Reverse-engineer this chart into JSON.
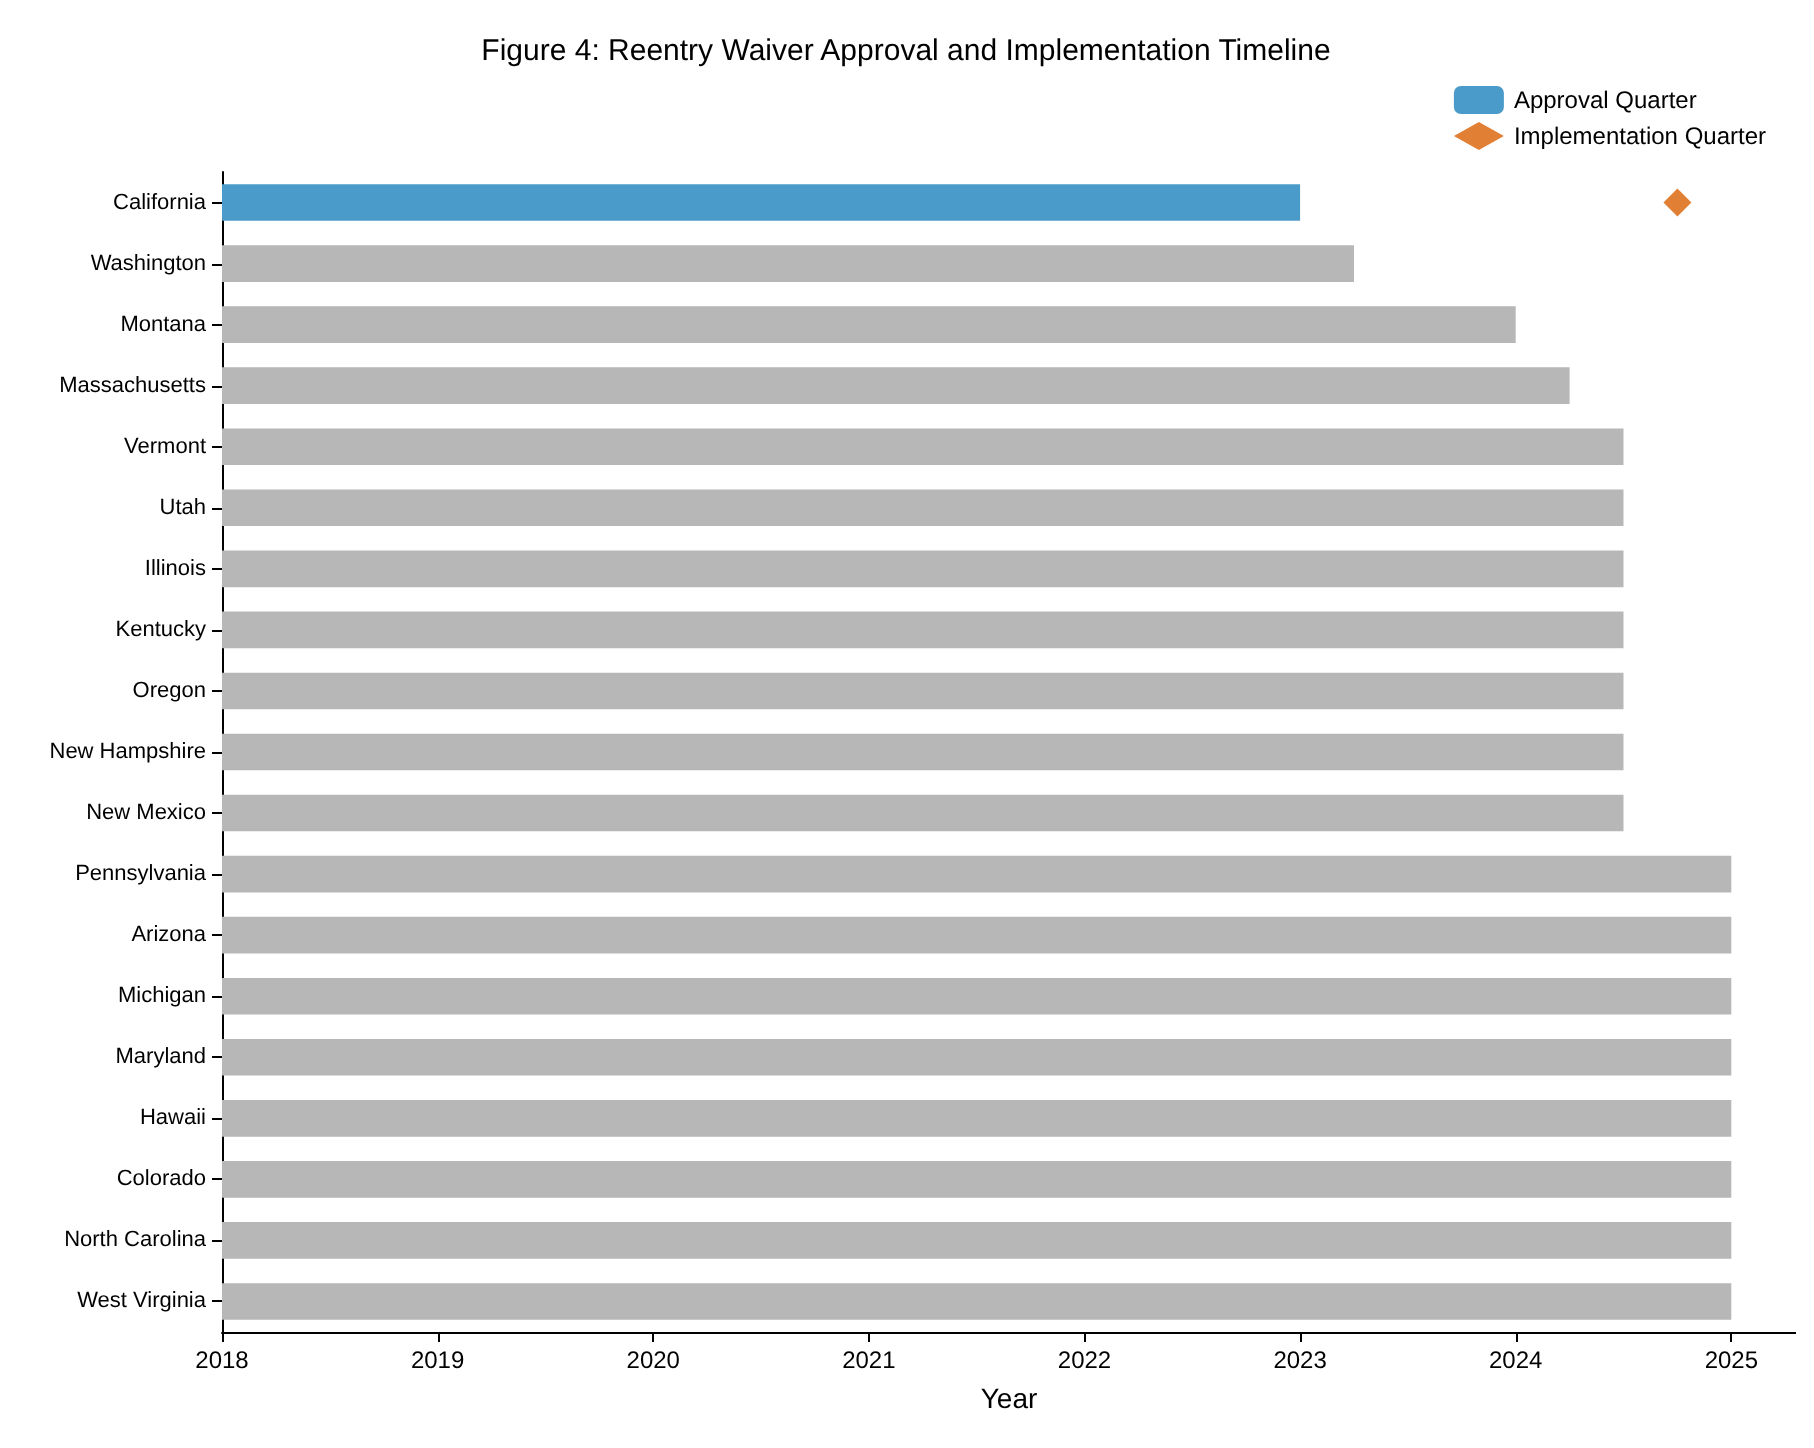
{
  "chart_data": {
    "type": "bar",
    "orientation": "horizontal",
    "title": "Figure 4: Reentry Waiver Approval and Implementation Timeline",
    "xlabel": "Year",
    "categories": [
      "California",
      "Washington",
      "Montana",
      "Massachusetts",
      "Vermont",
      "Utah",
      "Illinois",
      "Kentucky",
      "Oregon",
      "New Hampshire",
      "New Mexico",
      "Pennsylvania",
      "Arizona",
      "Michigan",
      "Maryland",
      "Hawaii",
      "Colorado",
      "North Carolina",
      "West Virginia"
    ],
    "series": [
      {
        "name": "Approval Quarter",
        "color": "#4a9bc9",
        "colors": [
          "#4a9bc9",
          "#b7b7b7",
          "#b7b7b7",
          "#b7b7b7",
          "#b7b7b7",
          "#b7b7b7",
          "#b7b7b7",
          "#b7b7b7",
          "#b7b7b7",
          "#b7b7b7",
          "#b7b7b7",
          "#b7b7b7",
          "#b7b7b7",
          "#b7b7b7",
          "#b7b7b7",
          "#b7b7b7",
          "#b7b7b7",
          "#b7b7b7",
          "#b7b7b7"
        ],
        "values": [
          2023,
          2023.25,
          2024,
          2024.25,
          2024.5,
          2024.5,
          2024.5,
          2024.5,
          2024.5,
          2024.5,
          2024.5,
          2025,
          2025,
          2025,
          2025,
          2025,
          2025,
          2025,
          2025
        ]
      },
      {
        "name": "Implementation Quarter",
        "type": "scatter",
        "color": "#d95f02",
        "marker": "diamond",
        "x": [
          "California"
        ],
        "values": [
          2024.75
        ]
      }
    ],
    "xlim": [
      2018,
      2025.3
    ],
    "xticks": [
      2018,
      2019,
      2020,
      2021,
      2022,
      2023,
      2024,
      2025
    ],
    "grid": false,
    "legend": "top right"
  }
}
